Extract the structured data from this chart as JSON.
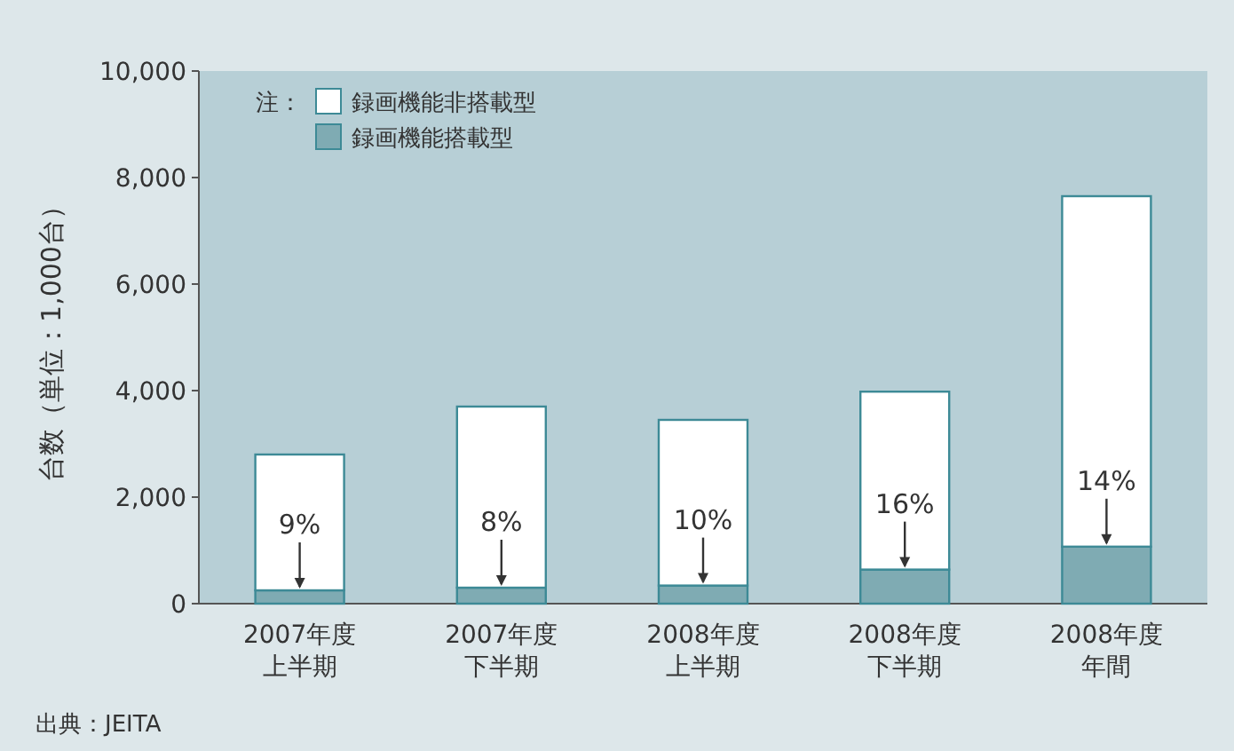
{
  "chart_data": {
    "type": "bar",
    "stacked": true,
    "categories": [
      "2007年度上半期",
      "2007年度下半期",
      "2008年度上半期",
      "2008年度下半期",
      "2008年度年間"
    ],
    "series": [
      {
        "name": "録画機能搭載型",
        "color": "#7fabb3",
        "values": [
          250,
          300,
          340,
          640,
          1070
        ]
      },
      {
        "name": "録画機能非搭載型",
        "color": "#ffffff",
        "values": [
          2550,
          3400,
          3110,
          3340,
          6580
        ]
      }
    ],
    "ylabel": "台数（単位：1,000台）",
    "ylim": [
      0,
      10000
    ],
    "yticks": [
      {
        "value": 0,
        "label": "0"
      },
      {
        "value": 2000,
        "label": "2,000"
      },
      {
        "value": 4000,
        "label": "4,000"
      },
      {
        "value": 6000,
        "label": "6,000"
      },
      {
        "value": 8000,
        "label": "8,000"
      },
      {
        "value": 10000,
        "label": "10,000"
      }
    ],
    "legend": "top left",
    "legend_title": "注：",
    "grid": false,
    "annotations": [
      {
        "text": "9%",
        "x": "2007年度上半期",
        "y": 250
      },
      {
        "text": "8%",
        "x": "2007年度下半期",
        "y": 300
      },
      {
        "text": "10%",
        "x": "2008年度上半期",
        "y": 340
      },
      {
        "text": "16%",
        "x": "2008年度下半期",
        "y": 640
      },
      {
        "text": "14%",
        "x": "2008年度年間",
        "y": 1070
      },
      "出典：JEITA"
    ]
  }
}
